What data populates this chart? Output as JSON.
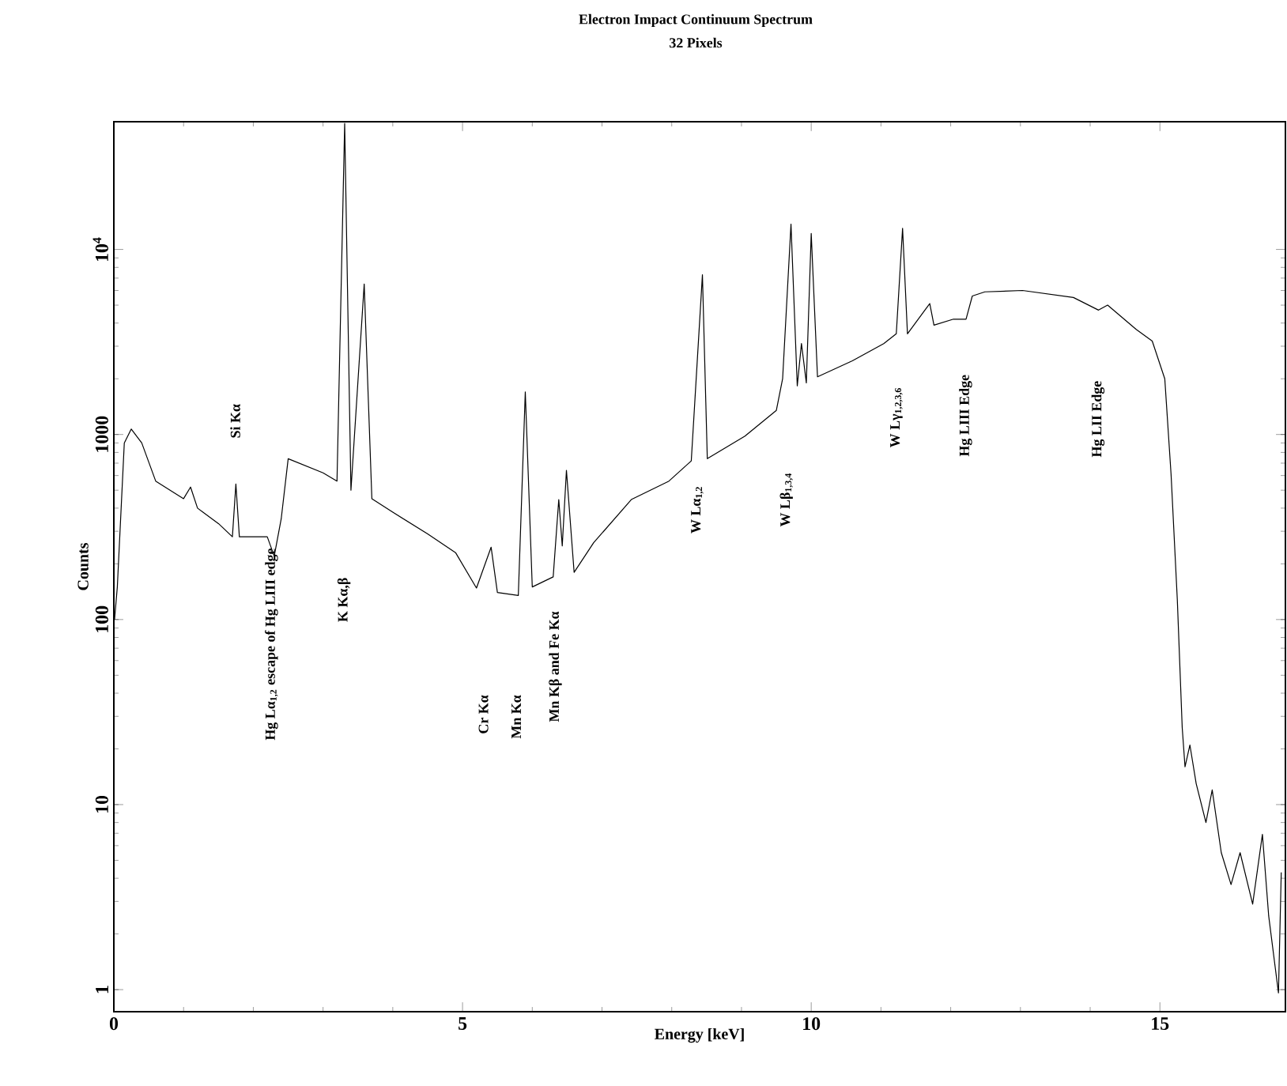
{
  "chart_data": {
    "type": "line",
    "title": "Electron Impact Continuum Spectrum",
    "subtitle": "32 Pixels",
    "xlabel": "Energy [keV]",
    "ylabel": "Counts",
    "log": "y",
    "xlim": [
      0,
      16.8
    ],
    "ylim": [
      0.76,
      49000
    ],
    "xticks": [
      0,
      5,
      10,
      15
    ],
    "yticks": [
      1,
      10,
      100,
      1000,
      {
        "value": 10000,
        "label": "10$^{4}$"
      }
    ],
    "series": [
      {
        "color": "#000000",
        "x": [
          0.01,
          0.05,
          0.15,
          0.25,
          0.4,
          0.6,
          1.0,
          1.1,
          1.2,
          1.5,
          1.7,
          1.75,
          1.8,
          2.2,
          2.3,
          2.4,
          2.5,
          3.0,
          3.2,
          3.31,
          3.4,
          3.59,
          3.7,
          4.0,
          4.5,
          4.9,
          5.2,
          5.41,
          5.5,
          5.8,
          5.9,
          6.0,
          6.3,
          6.38,
          6.43,
          6.49,
          6.6,
          6.88,
          7.42,
          7.96,
          8.28,
          8.44,
          8.51,
          9.05,
          9.5,
          9.59,
          9.71,
          9.8,
          9.86,
          9.93,
          10.0,
          10.09,
          10.59,
          11.04,
          11.22,
          11.31,
          11.38,
          11.63,
          11.7,
          11.76,
          12.04,
          12.22,
          12.31,
          12.49,
          13.03,
          13.76,
          14.12,
          14.25,
          14.66,
          14.89,
          15.07,
          15.16,
          15.25,
          15.32,
          15.36,
          15.43,
          15.52,
          15.66,
          15.75,
          15.88,
          16.02,
          16.15,
          16.33,
          16.47,
          16.56,
          16.7,
          16.74
        ],
        "values": [
          100,
          150,
          900,
          1070,
          900,
          560,
          450,
          520,
          400,
          330,
          280,
          540,
          280,
          280,
          220,
          350,
          740,
          620,
          560,
          48000,
          500,
          6500,
          450,
          380,
          290,
          230,
          148,
          246,
          140,
          135,
          1700,
          150,
          170,
          445,
          250,
          640,
          180,
          260,
          445,
          560,
          720,
          7300,
          740,
          980,
          1350,
          2000,
          13700,
          1830,
          3100,
          1900,
          12200,
          2050,
          2500,
          3100,
          3500,
          13000,
          3500,
          4700,
          5100,
          3900,
          4200,
          4200,
          5600,
          5900,
          6000,
          5500,
          4700,
          5000,
          3700,
          3200,
          2000,
          610,
          127,
          26,
          16,
          21,
          13,
          8,
          12,
          5.5,
          3.7,
          5.5,
          2.9,
          6.9,
          2.5,
          0.96,
          4.3
        ]
      }
    ],
    "annotations": [
      "Si Kα",
      "Hg Lα$_{1,2}$ escape of Hg LIII edge",
      "K Kα,β",
      "Cr Kα",
      "Mn Kα",
      "Mn Kβ and Fe Kα",
      "W Lα$_{1,2}$",
      "W Lβ$_{1,3,4}$",
      "W Lγ$_{1,2,3,6}$",
      "Hg LIII Edge",
      "Hg LII Edge"
    ]
  }
}
